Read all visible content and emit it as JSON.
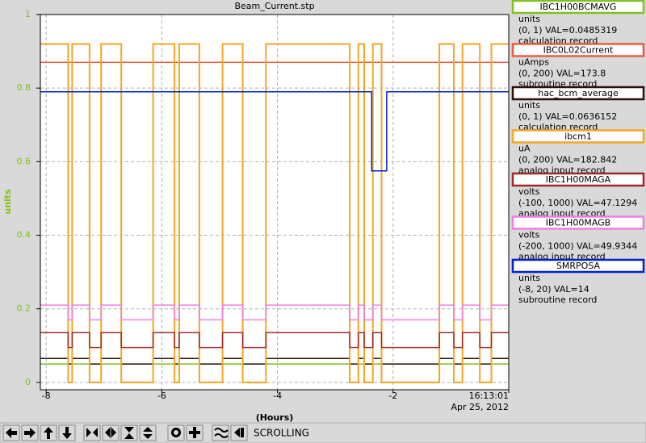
{
  "chart_data": {
    "type": "line",
    "title": "Beam_Current.stp",
    "ylabel": "units",
    "xlabel": "(Hours)",
    "date_label": "Apr 25, 2012",
    "xlim": [
      -8.1,
      0
    ],
    "ylim": [
      -0.02,
      1
    ],
    "xticks": [
      -8,
      -6,
      -4,
      -2,
      {
        "value": 0,
        "label": "16:13:01"
      }
    ],
    "yticks": [
      0,
      0.2,
      0.4,
      0.6,
      0.8,
      1
    ],
    "grid": true,
    "axis_color": "#80c020",
    "x": [
      -8.1,
      -7.62,
      -7.62,
      -7.55,
      -7.55,
      -7.25,
      -7.25,
      -7.05,
      -7.05,
      -6.7,
      -6.7,
      -6.15,
      -6.15,
      -5.78,
      -5.78,
      -5.7,
      -5.7,
      -5.35,
      -5.35,
      -4.95,
      -4.95,
      -4.6,
      -4.6,
      -4.2,
      -4.2,
      -2.75,
      -2.75,
      -2.6,
      -2.6,
      -2.5,
      -2.5,
      -2.35,
      -2.35,
      -2.2,
      -2.2,
      -1.2,
      -1.2,
      -0.95,
      -0.95,
      -0.8,
      -0.8,
      -0.5,
      -0.5,
      -0.3,
      -0.3,
      0
    ],
    "series": [
      {
        "name": "IBC1H00BCMAVG",
        "units": "units",
        "range": "(0, 1) VAL=0.0485319",
        "record": "calculation record",
        "color": "#80c020",
        "values": [
          0.05,
          0.05,
          0,
          0,
          0.05,
          0.05,
          0,
          0,
          0.05,
          0.05,
          0,
          0,
          0.05,
          0.05,
          0,
          0,
          0.05,
          0.05,
          0,
          0,
          0.05,
          0.05,
          0,
          0,
          0.05,
          0.05,
          0,
          0,
          0.05,
          0.05,
          0,
          0,
          0.05,
          0.05,
          0,
          0,
          0.05,
          0.05,
          0,
          0,
          0.05,
          0.05,
          0,
          0,
          0.05,
          0.05
        ]
      },
      {
        "name": "IBC0L02Current",
        "units": "uAmps",
        "range": "(0, 200) VAL=173.8",
        "record": "subroutine record",
        "color": "#f05a40",
        "x": [
          -8.1,
          0
        ],
        "values": [
          0.87,
          0.87
        ]
      },
      {
        "name": "hac_bcm_average",
        "units": "units",
        "range": "(0, 1) VAL=0.0636152",
        "record": "calculation record",
        "color": "#2a1208",
        "values": [
          0.065,
          0.065,
          0.05,
          0.05,
          0.065,
          0.065,
          0.05,
          0.05,
          0.065,
          0.065,
          0.05,
          0.05,
          0.065,
          0.065,
          0.05,
          0.05,
          0.065,
          0.065,
          0.05,
          0.05,
          0.065,
          0.065,
          0.05,
          0.05,
          0.065,
          0.065,
          0.05,
          0.05,
          0.065,
          0.065,
          0.05,
          0.05,
          0.065,
          0.065,
          0.05,
          0.05,
          0.065,
          0.065,
          0.05,
          0.05,
          0.065,
          0.065,
          0.05,
          0.05,
          0.065,
          0.065
        ]
      },
      {
        "name": "ibcm1",
        "units": "uA",
        "range": "(0, 200) VAL=182.842",
        "record": "analog input record",
        "color": "#f5a623",
        "values": [
          0.92,
          0.92,
          0,
          0,
          0.92,
          0.92,
          0,
          0,
          0.92,
          0.92,
          0,
          0,
          0.92,
          0.92,
          0,
          0,
          0.92,
          0.92,
          0,
          0,
          0.92,
          0.92,
          0,
          0,
          0.92,
          0.92,
          0,
          0,
          0.92,
          0.92,
          0,
          0,
          0.92,
          0.92,
          0,
          0,
          0.92,
          0.92,
          0,
          0,
          0.92,
          0.92,
          0,
          0,
          0.92,
          0.92
        ]
      },
      {
        "name": "IBC1H00MAGA",
        "units": "volts",
        "range": "(-100, 1000) VAL=47.1294",
        "record": "analog input record",
        "color": "#a02828",
        "values": [
          0.135,
          0.135,
          0.095,
          0.095,
          0.135,
          0.135,
          0.095,
          0.095,
          0.135,
          0.135,
          0.095,
          0.095,
          0.135,
          0.135,
          0.095,
          0.095,
          0.135,
          0.135,
          0.095,
          0.095,
          0.135,
          0.135,
          0.095,
          0.095,
          0.135,
          0.135,
          0.095,
          0.095,
          0.135,
          0.135,
          0.095,
          0.095,
          0.135,
          0.135,
          0.095,
          0.095,
          0.135,
          0.135,
          0.095,
          0.095,
          0.135,
          0.135,
          0.095,
          0.095,
          0.135,
          0.135
        ]
      },
      {
        "name": "IBC1H00MAGB",
        "units": "volts",
        "range": "(-200, 1000) VAL=49.9344",
        "record": "analog input record",
        "color": "#f080e0",
        "values": [
          0.21,
          0.21,
          0.17,
          0.17,
          0.21,
          0.21,
          0.17,
          0.17,
          0.21,
          0.21,
          0.17,
          0.17,
          0.21,
          0.21,
          0.17,
          0.17,
          0.21,
          0.21,
          0.17,
          0.17,
          0.21,
          0.21,
          0.17,
          0.17,
          0.21,
          0.21,
          0.17,
          0.17,
          0.21,
          0.21,
          0.17,
          0.17,
          0.21,
          0.21,
          0.17,
          0.17,
          0.21,
          0.21,
          0.17,
          0.17,
          0.21,
          0.21,
          0.17,
          0.17,
          0.21,
          0.21
        ]
      },
      {
        "name": "SMRPOSA",
        "units": "units",
        "range": "(-8, 20) VAL=14",
        "record": "subroutine record",
        "color": "#0020d0",
        "x": [
          -8.1,
          -2.37,
          -2.37,
          -2.11,
          -2.11,
          0
        ],
        "values": [
          0.79,
          0.79,
          0.575,
          0.575,
          0.79,
          0.79
        ]
      }
    ]
  },
  "toolbar": {
    "status": "SCROLLING"
  }
}
